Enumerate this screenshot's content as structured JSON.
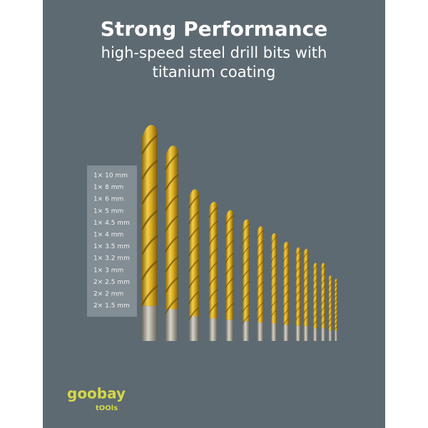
{
  "header": {
    "title": "Strong Performance",
    "subtitle": [
      "high-speed steel drill bits with",
      "titanium coating"
    ]
  },
  "sizes": [
    "1× 10 mm",
    "1× 8 mm",
    "1× 6 mm",
    "1× 5 mm",
    "1× 4.5 mm",
    "1× 4 mm",
    "1× 3.5 mm",
    "1× 3.2 mm",
    "1× 3 mm",
    "2× 2.5 mm",
    "2× 2 mm",
    "2× 1.5 mm"
  ],
  "brand": {
    "name": "goobay",
    "sub": "tOOls"
  }
}
